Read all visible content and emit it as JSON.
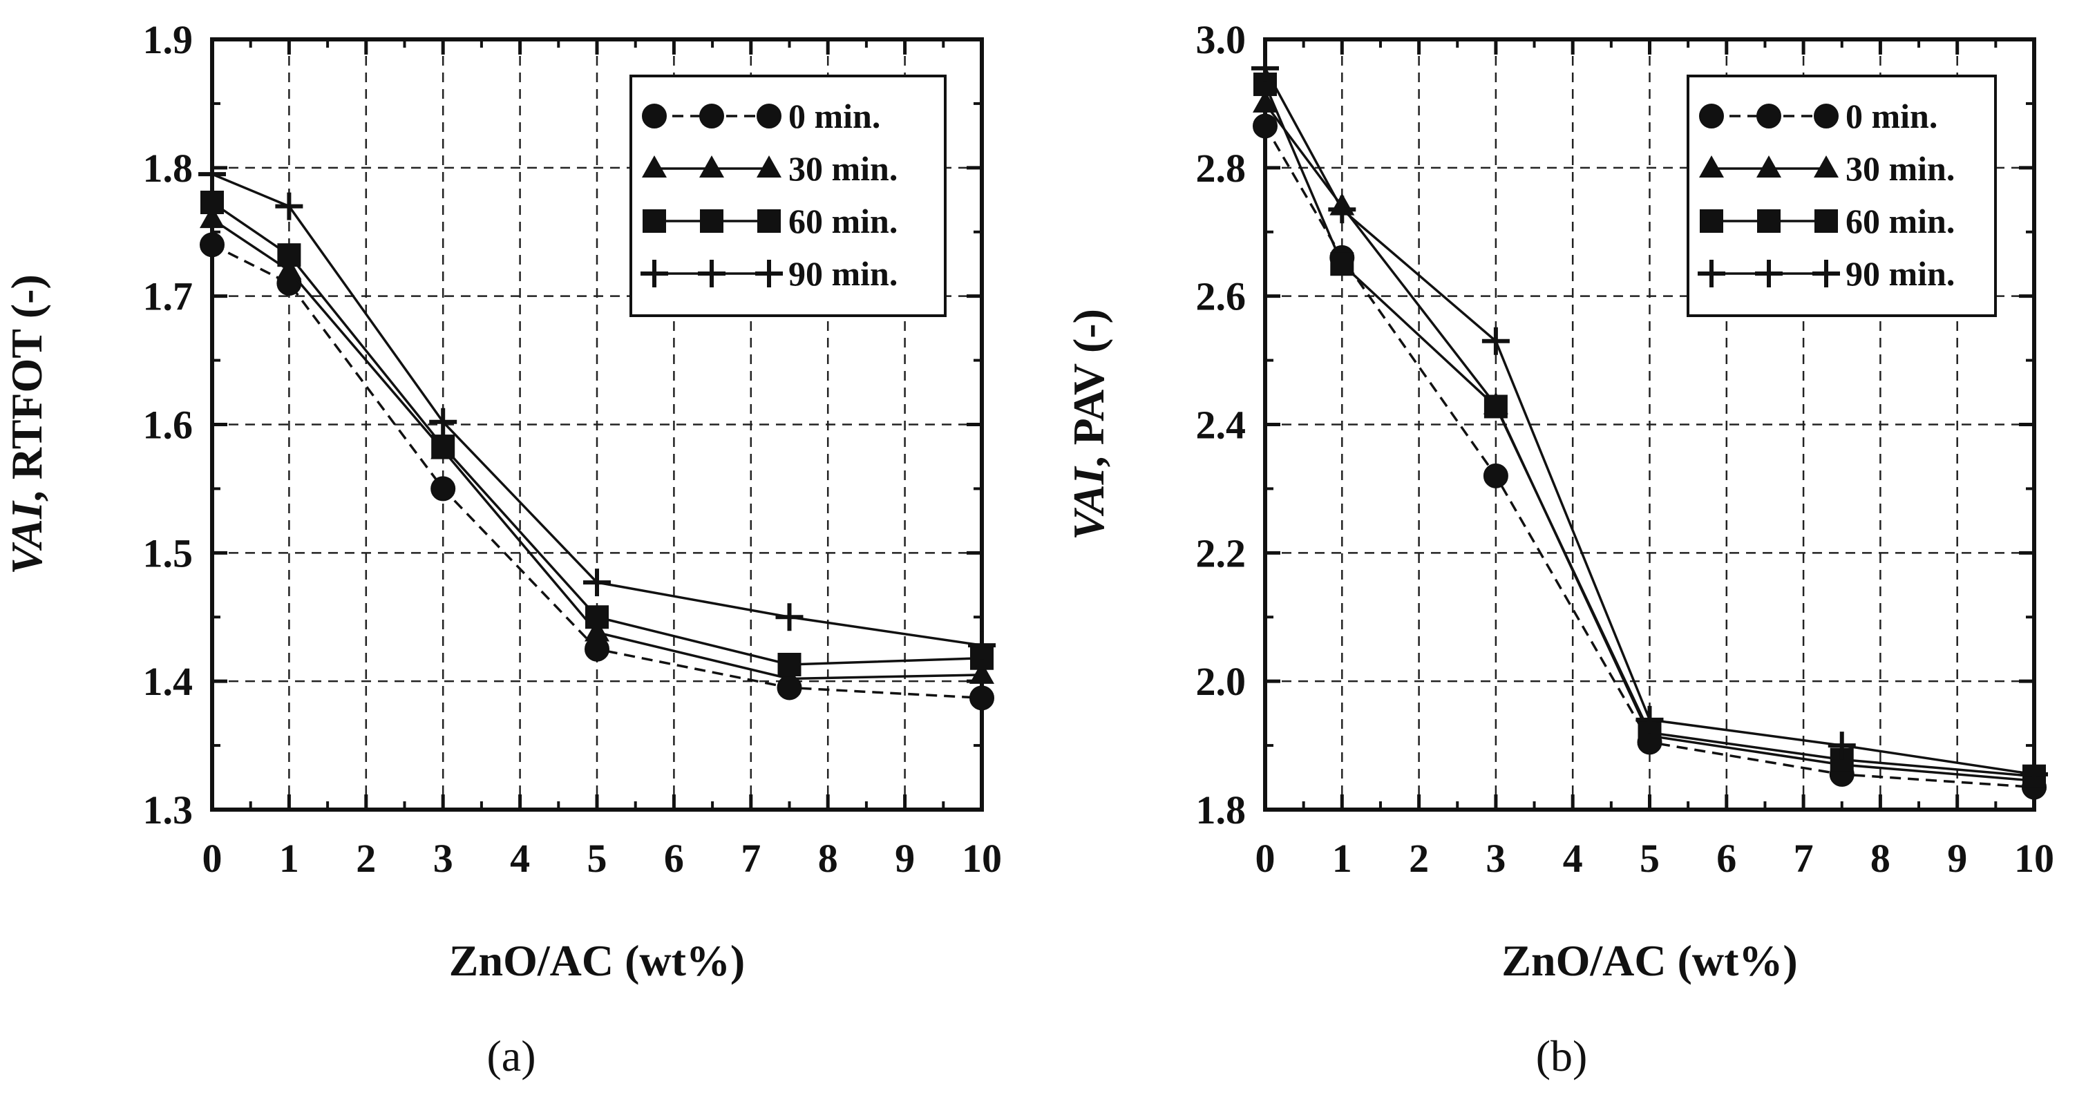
{
  "chart_data": [
    {
      "type": "line",
      "caption": "(a)",
      "xlabel": "ZnO/AC (wt%)",
      "ylabel_italic": "VAI",
      "ylabel_rest": ", RTFOT (-)",
      "xlim": [
        0,
        10
      ],
      "ylim": [
        1.3,
        1.9
      ],
      "xticks": [
        0,
        1,
        2,
        3,
        4,
        5,
        6,
        7,
        8,
        9,
        10
      ],
      "yticks": [
        1.3,
        1.4,
        1.5,
        1.6,
        1.7,
        1.8,
        1.9
      ],
      "ytick_labels": [
        "1.3",
        "1.4",
        "1.5",
        "1.6",
        "1.7",
        "1.8",
        "1.9"
      ],
      "grid": true,
      "legend_position": "top-right",
      "x": [
        0,
        1,
        3,
        5,
        7.5,
        10
      ],
      "series": [
        {
          "name": "0 min.",
          "marker": "circle",
          "dash": "dashed",
          "values": [
            1.74,
            1.71,
            1.55,
            1.425,
            1.395,
            1.387
          ]
        },
        {
          "name": "30 min.",
          "marker": "triangle",
          "dash": "solid",
          "values": [
            1.76,
            1.72,
            1.58,
            1.438,
            1.402,
            1.405
          ]
        },
        {
          "name": "60 min.",
          "marker": "square",
          "dash": "solid",
          "values": [
            1.773,
            1.732,
            1.583,
            1.45,
            1.413,
            1.418
          ]
        },
        {
          "name": "90 min.",
          "marker": "plus",
          "dash": "solid",
          "values": [
            1.795,
            1.77,
            1.602,
            1.477,
            1.45,
            1.428
          ]
        }
      ]
    },
    {
      "type": "line",
      "caption": "(b)",
      "xlabel": "ZnO/AC (wt%)",
      "ylabel_italic": "VAI",
      "ylabel_rest": ", PAV (-)",
      "xlim": [
        0,
        10
      ],
      "ylim": [
        1.8,
        3.0
      ],
      "xticks": [
        0,
        1,
        2,
        3,
        4,
        5,
        6,
        7,
        8,
        9,
        10
      ],
      "yticks": [
        1.8,
        2.0,
        2.2,
        2.4,
        2.6,
        2.8,
        3.0
      ],
      "ytick_labels": [
        "1.8",
        "2.0",
        "2.2",
        "2.4",
        "2.6",
        "2.8",
        "3.0"
      ],
      "grid": true,
      "legend_position": "top-right",
      "x": [
        0,
        1,
        3,
        5,
        7.5,
        10
      ],
      "series": [
        {
          "name": "0 min.",
          "marker": "circle",
          "dash": "dashed",
          "values": [
            2.865,
            2.66,
            2.32,
            1.905,
            1.855,
            1.835
          ]
        },
        {
          "name": "30 min.",
          "marker": "triangle",
          "dash": "solid",
          "values": [
            2.9,
            2.74,
            2.43,
            1.915,
            1.87,
            1.845
          ]
        },
        {
          "name": "60 min.",
          "marker": "square",
          "dash": "solid",
          "values": [
            2.93,
            2.65,
            2.428,
            1.92,
            1.878,
            1.852
          ]
        },
        {
          "name": "90 min.",
          "marker": "plus",
          "dash": "solid",
          "values": [
            2.955,
            2.735,
            2.53,
            1.94,
            1.9,
            1.855
          ]
        }
      ]
    }
  ]
}
